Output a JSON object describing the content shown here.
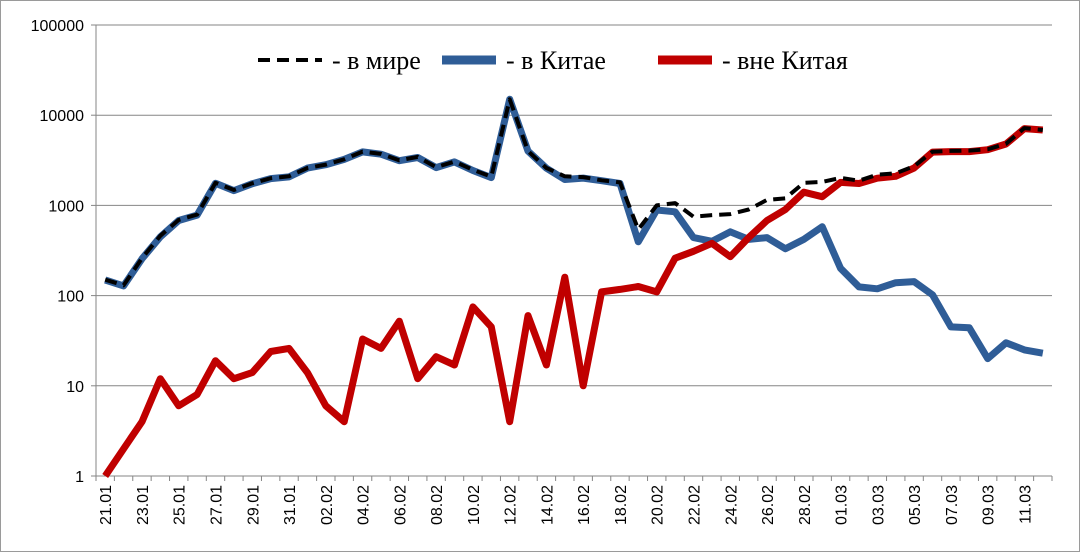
{
  "chart_data": {
    "type": "line",
    "y_scale": "log",
    "ylim": [
      1,
      100000
    ],
    "y_ticks": [
      "1",
      "10",
      "100",
      "1000",
      "10000",
      "100000"
    ],
    "x_tick_labels": [
      "21.01",
      "23.01",
      "25.01",
      "27.01",
      "29.01",
      "31.01",
      "02.02",
      "04.02",
      "06.02",
      "08.02",
      "10.02",
      "12.02",
      "14.02",
      "16.02",
      "18.02",
      "20.02",
      "22.02",
      "24.02",
      "26.02",
      "28.02",
      "01.03",
      "03.03",
      "05.03",
      "07.03",
      "09.03",
      "11.03"
    ],
    "grid": "horizontal",
    "legend_placement": "top",
    "x": [
      "21.01",
      "22.01",
      "23.01",
      "24.01",
      "25.01",
      "26.01",
      "27.01",
      "28.01",
      "29.01",
      "30.01",
      "31.01",
      "01.02",
      "02.02",
      "03.02",
      "04.02",
      "05.02",
      "06.02",
      "07.02",
      "08.02",
      "09.02",
      "10.02",
      "11.02",
      "12.02",
      "13.02",
      "14.02",
      "15.02",
      "16.02",
      "17.02",
      "18.02",
      "19.02",
      "20.02",
      "21.02",
      "22.02",
      "23.02",
      "24.02",
      "25.02",
      "26.02",
      "27.02",
      "28.02",
      "29.02",
      "01.03",
      "02.03",
      "03.03",
      "04.03",
      "05.03",
      "06.03",
      "07.03",
      "08.03",
      "09.03",
      "10.03",
      "11.03",
      "12.03"
    ],
    "series": [
      {
        "name": "- в мире",
        "color": "#000000",
        "style": "dashed",
        "values": [
          150,
          130,
          260,
          460,
          690,
          790,
          1780,
          1480,
          1760,
          2000,
          2100,
          2600,
          2830,
          3240,
          3950,
          3720,
          3160,
          3450,
          2650,
          3060,
          2480,
          2080,
          15000,
          4000,
          2600,
          2100,
          2060,
          1900,
          1800,
          540,
          1000,
          1060,
          750,
          780,
          800,
          900,
          1150,
          1200,
          1780,
          1820,
          2020,
          1880,
          2190,
          2270,
          2710,
          3940,
          4020,
          4050,
          4190,
          4820,
          7200,
          6850
        ]
      },
      {
        "name": "-  в Китае",
        "color": "#2f5d97",
        "style": "solid",
        "values": [
          149,
          128,
          256,
          448,
          680,
          780,
          1760,
          1460,
          1740,
          1980,
          2070,
          2590,
          2825,
          3235,
          3916,
          3695,
          3134,
          3397,
          2627,
          3037,
          2435,
          2034,
          14995,
          4000,
          2584,
          1937,
          2005,
          1879,
          1750,
          395,
          889,
          850,
          440,
          400,
          510,
          420,
          440,
          330,
          420,
          580,
          200,
          125,
          119,
          139,
          143,
          102,
          45,
          44,
          20,
          30,
          25,
          23
        ]
      },
      {
        "name": "- вне Китая",
        "color": "#c00000",
        "style": "solid",
        "values": [
          1,
          2,
          4,
          12,
          6,
          8,
          19,
          12,
          14,
          24,
          26,
          14,
          6,
          4,
          33,
          26,
          52,
          12,
          21,
          17,
          75,
          45,
          4,
          60,
          17,
          160,
          10,
          110,
          117,
          126,
          110,
          260,
          310,
          380,
          270,
          440,
          680,
          900,
          1400,
          1250,
          1800,
          1750,
          2000,
          2100,
          2600,
          3900,
          3950,
          3950,
          4150,
          4800,
          7100,
          6850
        ]
      }
    ]
  }
}
